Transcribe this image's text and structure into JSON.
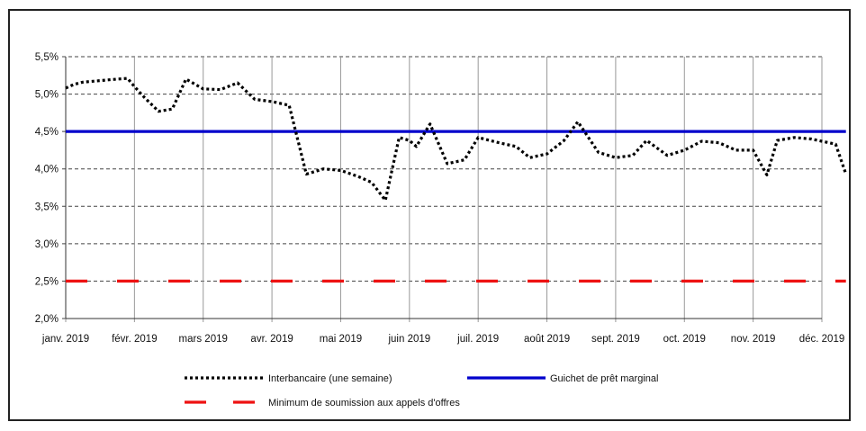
{
  "chart_data": {
    "type": "line",
    "title": "",
    "xlabel": "",
    "ylabel": "",
    "ylim": [
      2.0,
      5.5
    ],
    "y_ticks": [
      "2,0%",
      "2,5%",
      "3,0%",
      "3,5%",
      "4,0%",
      "4,5%",
      "5,0%",
      "5,5%"
    ],
    "y_tick_values": [
      2.0,
      2.5,
      3.0,
      3.5,
      4.0,
      4.5,
      5.0,
      5.5
    ],
    "x_ticks": [
      "janv. 2019",
      "févr. 2019",
      "mars 2019",
      "avr. 2019",
      "mai 2019",
      "juin 2019",
      "juil. 2019",
      "août 2019",
      "sept. 2019",
      "oct. 2019",
      "nov. 2019",
      "déc. 2019"
    ],
    "grid": true,
    "legend_position": "bottom",
    "series": [
      {
        "name": "Interbancaire (une semaine)",
        "style": "dotted",
        "color": "#000000",
        "values": [
          [
            0,
            5.08
          ],
          [
            0.12,
            5.13
          ],
          [
            0.25,
            5.16
          ],
          [
            0.5,
            5.18
          ],
          [
            0.75,
            5.2
          ],
          [
            0.9,
            5.21
          ],
          [
            1.0,
            5.1
          ],
          [
            1.15,
            4.95
          ],
          [
            1.35,
            4.77
          ],
          [
            1.55,
            4.8
          ],
          [
            1.75,
            5.2
          ],
          [
            2.0,
            5.07
          ],
          [
            2.25,
            5.06
          ],
          [
            2.5,
            5.15
          ],
          [
            2.75,
            4.93
          ],
          [
            3.0,
            4.9
          ],
          [
            3.25,
            4.85
          ],
          [
            3.5,
            3.93
          ],
          [
            3.75,
            4.0
          ],
          [
            4.0,
            3.98
          ],
          [
            4.25,
            3.9
          ],
          [
            4.45,
            3.82
          ],
          [
            4.65,
            3.58
          ],
          [
            4.85,
            4.42
          ],
          [
            5.0,
            4.38
          ],
          [
            5.1,
            4.3
          ],
          [
            5.3,
            4.6
          ],
          [
            5.55,
            4.07
          ],
          [
            5.8,
            4.12
          ],
          [
            6.0,
            4.42
          ],
          [
            6.3,
            4.35
          ],
          [
            6.55,
            4.3
          ],
          [
            6.75,
            4.15
          ],
          [
            7.0,
            4.2
          ],
          [
            7.25,
            4.38
          ],
          [
            7.45,
            4.63
          ],
          [
            7.75,
            4.22
          ],
          [
            8.0,
            4.15
          ],
          [
            8.25,
            4.18
          ],
          [
            8.45,
            4.38
          ],
          [
            8.75,
            4.18
          ],
          [
            9.0,
            4.25
          ],
          [
            9.25,
            4.37
          ],
          [
            9.5,
            4.35
          ],
          [
            9.75,
            4.25
          ],
          [
            10.0,
            4.25
          ],
          [
            10.2,
            3.92
          ],
          [
            10.35,
            4.38
          ],
          [
            10.6,
            4.42
          ],
          [
            10.85,
            4.4
          ],
          [
            11.0,
            4.37
          ],
          [
            11.2,
            4.33
          ],
          [
            11.35,
            3.93
          ]
        ]
      },
      {
        "name": "Guichet de prêt marginal",
        "style": "solid",
        "color": "#0000cc",
        "values": [
          [
            0,
            4.5
          ],
          [
            11.35,
            4.5
          ]
        ]
      },
      {
        "name": "Minimum de soumission aux appels d'offres",
        "style": "dashed",
        "color": "#ee1111",
        "values": [
          [
            0,
            2.5
          ],
          [
            11.35,
            2.5
          ]
        ]
      }
    ]
  }
}
